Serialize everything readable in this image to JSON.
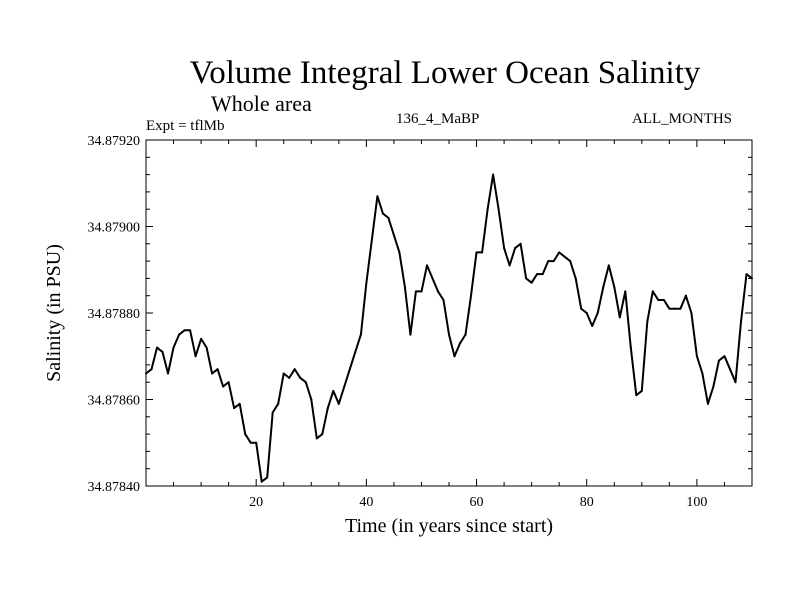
{
  "chart_data": {
    "type": "line",
    "title": "Volume Integral Lower Ocean Salinity",
    "subtitle": "Whole area",
    "experiment": "Expt = tflMb",
    "run_id": "136_4_MaBP",
    "period": "ALL_MONTHS",
    "xlabel": "Time (in years since start)",
    "ylabel": "Salinity (in PSU)",
    "xlim": [
      0,
      110
    ],
    "ylim": [
      34.8784,
      34.8792
    ],
    "x_ticks": [
      20,
      40,
      60,
      80,
      100
    ],
    "x_tick_labels": [
      "20",
      "40",
      "60",
      "80",
      "100"
    ],
    "y_ticks": [
      34.8784,
      34.8786,
      34.8788,
      34.879,
      34.8792
    ],
    "y_tick_labels": [
      "34.87840",
      "34.87860",
      "34.87880",
      "34.87900",
      "34.87920"
    ],
    "grid": false,
    "series": [
      {
        "name": "Salinity",
        "x": [
          0,
          1,
          2,
          3,
          4,
          5,
          6,
          7,
          8,
          9,
          10,
          11,
          12,
          13,
          14,
          15,
          16,
          17,
          18,
          19,
          20,
          21,
          22,
          23,
          24,
          25,
          26,
          27,
          28,
          29,
          30,
          31,
          32,
          33,
          34,
          35,
          36,
          37,
          38,
          39,
          40,
          41,
          42,
          43,
          44,
          45,
          46,
          47,
          48,
          49,
          50,
          51,
          52,
          53,
          54,
          55,
          56,
          57,
          58,
          59,
          60,
          61,
          62,
          63,
          64,
          65,
          66,
          67,
          68,
          69,
          70,
          71,
          72,
          73,
          74,
          75,
          76,
          77,
          78,
          79,
          80,
          81,
          82,
          83,
          84,
          85,
          86,
          87,
          88,
          89,
          90,
          91,
          92,
          93,
          94,
          95,
          96,
          97,
          98,
          99,
          100,
          101,
          102,
          103,
          104,
          105,
          106,
          107,
          108,
          109,
          110
        ],
        "values": [
          34.87866,
          34.87867,
          34.87872,
          34.87871,
          34.87866,
          34.87872,
          34.87875,
          34.87876,
          34.87876,
          34.8787,
          34.87874,
          34.87872,
          34.87866,
          34.87867,
          34.87863,
          34.87864,
          34.87858,
          34.87859,
          34.87852,
          34.8785,
          34.8785,
          34.87841,
          34.87842,
          34.87857,
          34.87859,
          34.87866,
          34.87865,
          34.87867,
          34.87865,
          34.87864,
          34.8786,
          34.87851,
          34.87852,
          34.87858,
          34.87862,
          34.87859,
          34.87863,
          34.87867,
          34.87871,
          34.87875,
          34.87887,
          34.87897,
          34.87907,
          34.87903,
          34.87902,
          34.87898,
          34.87894,
          34.87886,
          34.87875,
          34.87885,
          34.87885,
          34.87891,
          34.87888,
          34.87885,
          34.87883,
          34.87875,
          34.8787,
          34.87873,
          34.87875,
          34.87884,
          34.87894,
          34.87894,
          34.87904,
          34.87912,
          34.87904,
          34.87895,
          34.87891,
          34.87895,
          34.87896,
          34.87888,
          34.87887,
          34.87889,
          34.87889,
          34.87892,
          34.87892,
          34.87894,
          34.87893,
          34.87892,
          34.87888,
          34.87881,
          34.8788,
          34.87877,
          34.8788,
          34.87886,
          34.87891,
          34.87886,
          34.87879,
          34.87885,
          34.87872,
          34.87861,
          34.87862,
          34.87878,
          34.87885,
          34.87883,
          34.87883,
          34.87881,
          34.87881,
          34.87881,
          34.87884,
          34.8788,
          34.8787,
          34.87866,
          34.87859,
          34.87863,
          34.87869,
          34.8787,
          34.87867,
          34.87864,
          34.87878,
          34.87889,
          34.87888
        ]
      }
    ]
  }
}
